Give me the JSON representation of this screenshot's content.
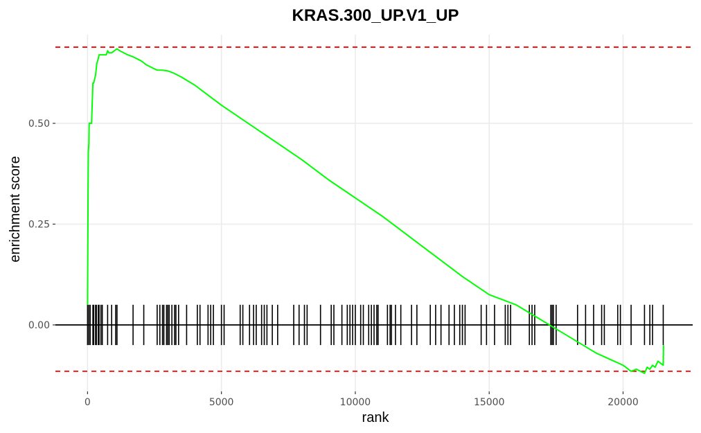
{
  "chart_data": {
    "type": "line",
    "title": "KRAS.300_UP.V1_UP",
    "xlabel": "rank",
    "ylabel": "enrichment score",
    "xlim": [
      -1200,
      22600
    ],
    "ylim": [
      -0.165,
      0.72
    ],
    "x_ticks": [
      0,
      5000,
      10000,
      15000,
      20000
    ],
    "x_tick_labels": [
      "0",
      "5000",
      "10000",
      "15000",
      "20000"
    ],
    "y_ticks": [
      0.0,
      0.25,
      0.5
    ],
    "y_tick_labels": [
      "0.00",
      "0.25",
      "0.50"
    ],
    "grid": true,
    "colors": {
      "curve": "#00ff00",
      "threshold": "#ff0000",
      "hits": "#000000",
      "zero_line": "#000000"
    },
    "reference_lines": {
      "max_es": 0.689,
      "min_es": -0.115,
      "zero": 0.0
    },
    "series": [
      {
        "values_x": [
          0,
          20,
          30,
          50,
          60,
          120,
          150,
          200,
          230,
          300,
          350,
          400,
          430,
          500,
          600,
          700,
          750,
          800,
          900,
          1000,
          1100,
          1200,
          1500,
          1700,
          2000,
          2200,
          2500,
          2600,
          2800,
          3000,
          3200,
          3500,
          4000,
          4500,
          5000,
          6000,
          7000,
          8000,
          9000,
          10000,
          11000,
          12000,
          13000,
          14000,
          15000,
          16000,
          16500,
          17000,
          17500,
          18000,
          18500,
          19000,
          19500,
          20000,
          20300,
          20500,
          20800,
          20900,
          21000,
          21100,
          21200,
          21300,
          21500,
          21510
        ],
        "values_y": [
          0.05,
          0.34,
          0.43,
          0.45,
          0.5,
          0.5,
          0.5,
          0.6,
          0.6,
          0.62,
          0.65,
          0.66,
          0.67,
          0.67,
          0.67,
          0.67,
          0.68,
          0.675,
          0.675,
          0.68,
          0.685,
          0.68,
          0.67,
          0.665,
          0.655,
          0.645,
          0.635,
          0.632,
          0.632,
          0.63,
          0.625,
          0.615,
          0.595,
          0.57,
          0.545,
          0.5,
          0.455,
          0.41,
          0.36,
          0.315,
          0.27,
          0.22,
          0.17,
          0.12,
          0.075,
          0.05,
          0.03,
          0.01,
          -0.01,
          -0.03,
          -0.05,
          -0.07,
          -0.085,
          -0.1,
          -0.115,
          -0.11,
          -0.12,
          -0.105,
          -0.11,
          -0.1,
          -0.105,
          -0.09,
          -0.1,
          -0.05
        ]
      }
    ],
    "hit_positions": [
      0,
      50,
      100,
      200,
      230,
      300,
      330,
      400,
      430,
      500,
      550,
      750,
      900,
      1050,
      1100,
      1700,
      2100,
      2600,
      2700,
      2800,
      2850,
      2950,
      3000,
      3050,
      3150,
      3250,
      3300,
      3400,
      3700,
      4100,
      4200,
      4500,
      4600,
      4700,
      5000,
      5100,
      5700,
      5800,
      6050,
      6200,
      6300,
      6500,
      6600,
      6700,
      6900,
      7100,
      7700,
      7900,
      8100,
      8200,
      8700,
      9100,
      9200,
      9500,
      9700,
      9800,
      9900,
      10000,
      10200,
      10300,
      10500,
      10600,
      10700,
      10800,
      10850,
      11200,
      11300,
      11350,
      11500,
      11700,
      12100,
      12300,
      12800,
      13000,
      13200,
      13500,
      13700,
      13900,
      14000,
      14100,
      14700,
      14900,
      15200,
      15600,
      15700,
      15800,
      16500,
      16600,
      16700,
      17300,
      17350,
      17400,
      17500,
      18300,
      18600,
      18900,
      19200,
      19300,
      19800,
      19900,
      20300,
      20800,
      21000,
      21100,
      21500
    ]
  }
}
